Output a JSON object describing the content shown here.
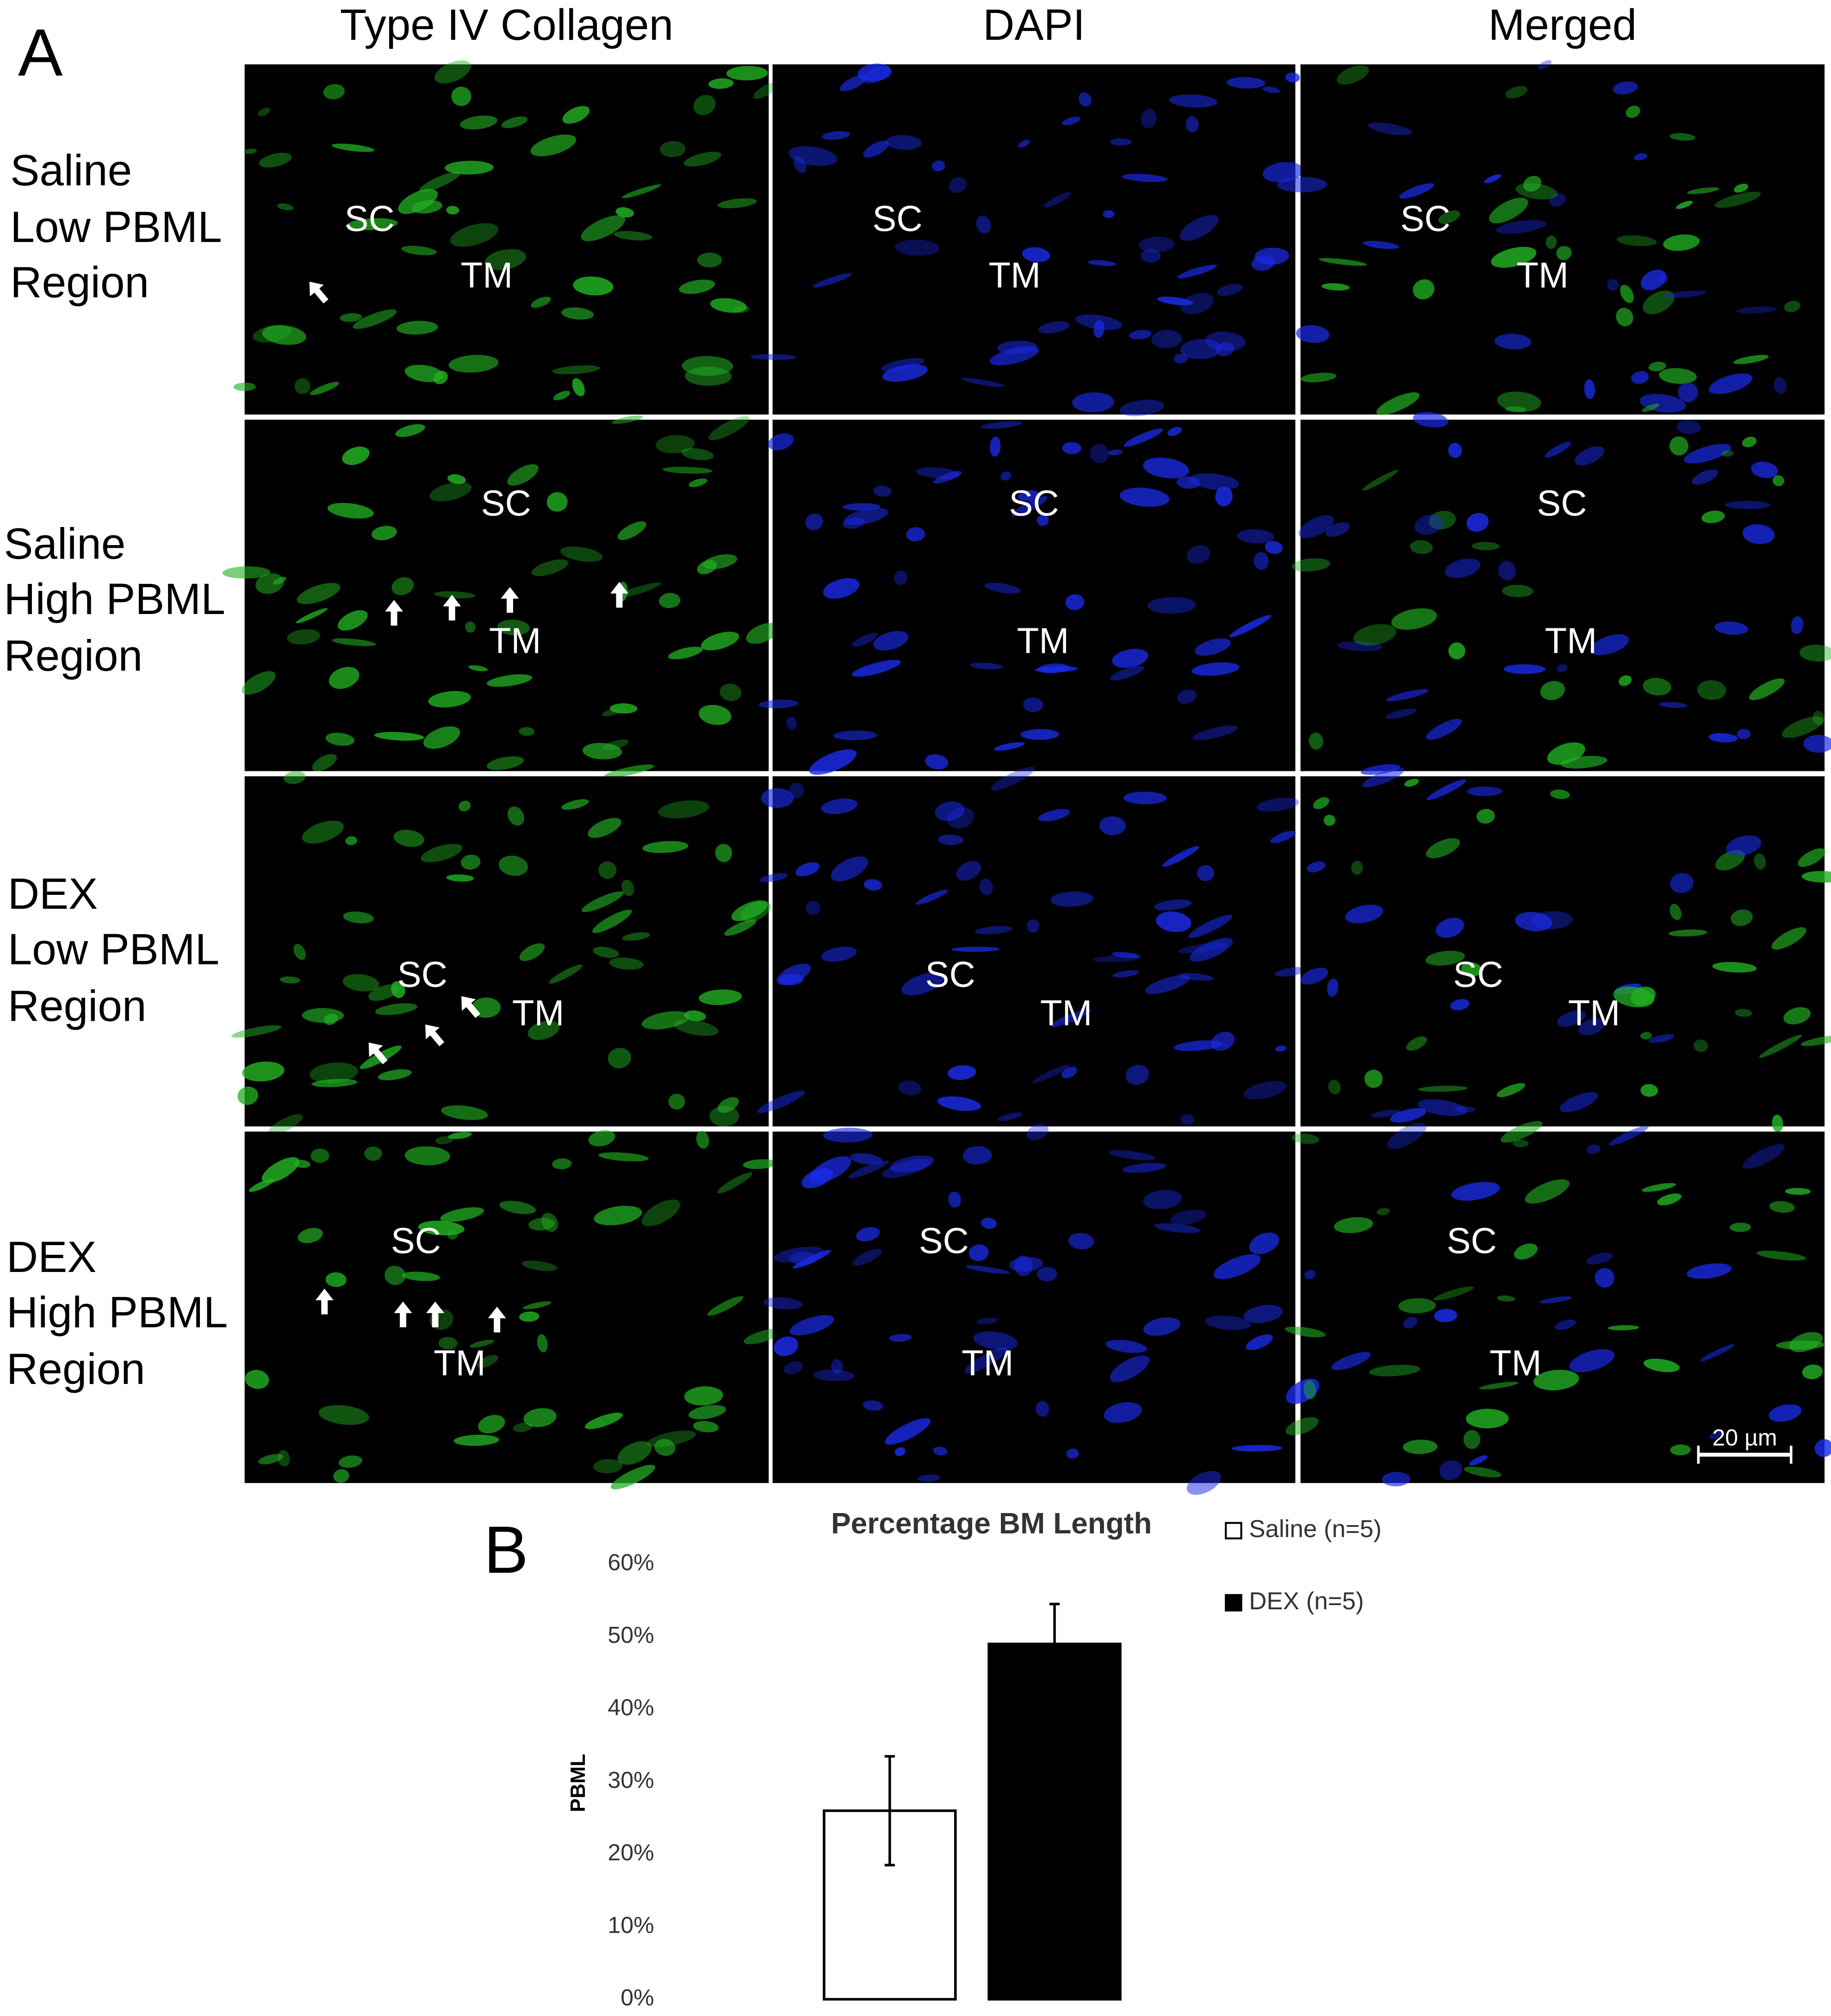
{
  "panel_a": {
    "label": "A",
    "column_headers": [
      "Type IV Collagen",
      "DAPI",
      "Merged"
    ],
    "rows": [
      {
        "label": [
          "Saline",
          "Low PBML",
          "Region"
        ],
        "images": [
          [
            "SC",
            "TM"
          ],
          [
            "SC",
            "TM"
          ],
          [
            "SC",
            "TM"
          ]
        ]
      },
      {
        "label": [
          "Saline",
          "High PBML",
          "Region"
        ],
        "images": [
          [
            "SC",
            "TM"
          ],
          [
            "SC",
            "TM"
          ],
          [
            "SC",
            "TM"
          ]
        ]
      },
      {
        "label": [
          "DEX",
          "Low PBML",
          "Region"
        ],
        "images": [
          [
            "SC",
            "TM"
          ],
          [
            "SC",
            "TM"
          ],
          [
            "SC",
            "TM"
          ]
        ]
      },
      {
        "label": [
          "DEX",
          "High PBML",
          "Region"
        ],
        "images": [
          [
            "SC",
            "TM"
          ],
          [
            "SC",
            "TM"
          ],
          [
            "SC",
            "TM"
          ]
        ]
      }
    ],
    "scale_bar": "20 µm"
  },
  "panel_b_label": "B",
  "chart_data": {
    "type": "bar",
    "title": "Percentage BM Length",
    "y_label": "PBML",
    "categories": [
      null
    ],
    "series": [
      {
        "name": "Saline (n=5)",
        "color": "#ffffff",
        "values": [
          26
        ],
        "errors": [
          7.5
        ]
      },
      {
        "name": "DEX (n=5)",
        "color": "#000000",
        "values": [
          49
        ],
        "errors": [
          5.5
        ]
      }
    ],
    "ylim": [
      0,
      60
    ],
    "yticks": [
      {
        "value": 0,
        "label": "0%"
      },
      {
        "value": 10,
        "label": "10%"
      },
      {
        "value": 20,
        "label": "20%"
      },
      {
        "value": 30,
        "label": "30%"
      },
      {
        "value": 40,
        "label": "40%"
      },
      {
        "value": 50,
        "label": "50%"
      },
      {
        "value": 60,
        "label": "60%"
      }
    ],
    "grid": false,
    "legend": "right"
  }
}
